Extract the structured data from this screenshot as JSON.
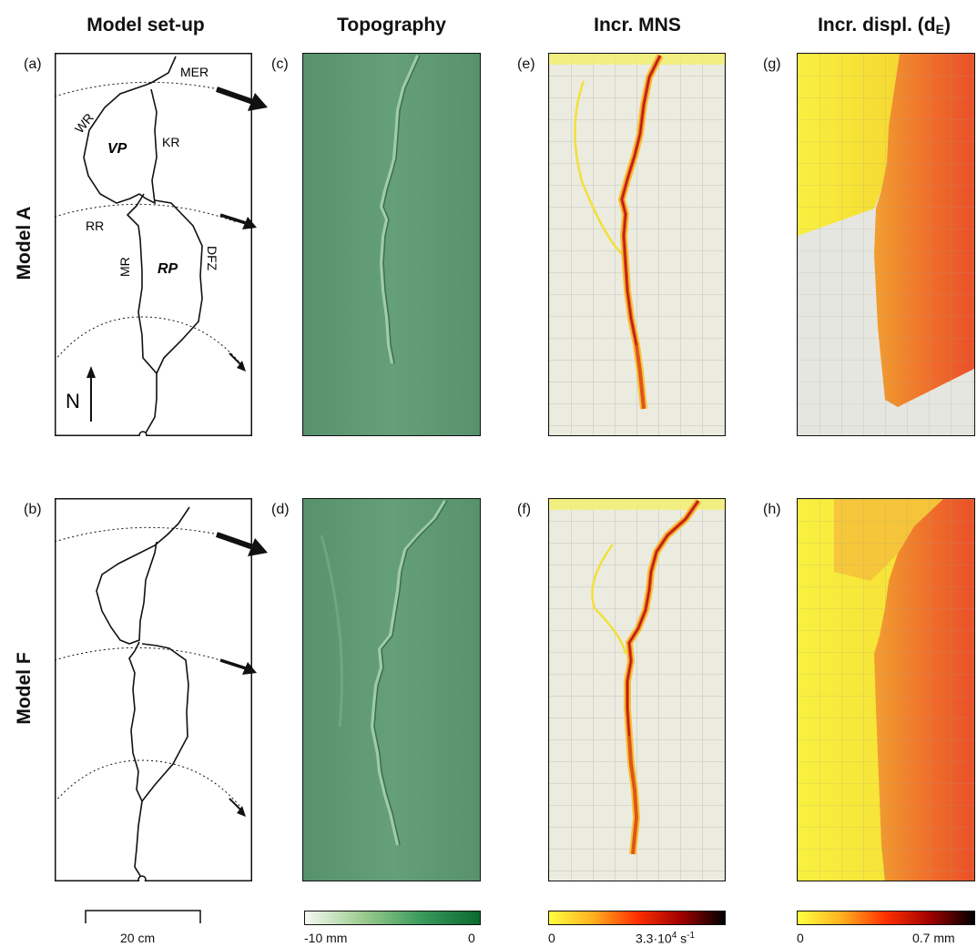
{
  "columns": {
    "setup": "Model set-up",
    "topography": "Topography",
    "mns": "Incr. MNS",
    "displ": "Incr. displ. (d",
    "displ_sub": "E",
    "displ_close": ")"
  },
  "rows": {
    "a": "Model A",
    "f": "Model F"
  },
  "panels": {
    "a": "(a)",
    "b": "(b)",
    "c": "(c)",
    "d": "(d)",
    "e": "(e)",
    "f": "(f)",
    "g": "(g)",
    "h": "(h)"
  },
  "setup_labels": {
    "mer": "MER",
    "wr": "WR",
    "vp": "VP",
    "kr": "KR",
    "rr": "RR",
    "mr": "MR",
    "rp": "RP",
    "dfz": "DFZ",
    "north": "N"
  },
  "scale_bar": "20 cm",
  "colorbars": {
    "topo_min": "-10 mm",
    "topo_max": "0",
    "mns_min": "0",
    "mns_max": "3.3·10",
    "mns_exp": "4",
    "mns_unit": " s",
    "mns_unit_exp": "-1",
    "displ_min": "0",
    "displ_max": "0.7 mm"
  },
  "colors": {
    "topo_bg": "#5f9a74",
    "topo_bar_start": "#f4f9f1",
    "topo_bar_end": "#0a6a30",
    "hot_start": "#ffff40",
    "hot_mid": "#ff3000",
    "hot_end": "#000000"
  }
}
